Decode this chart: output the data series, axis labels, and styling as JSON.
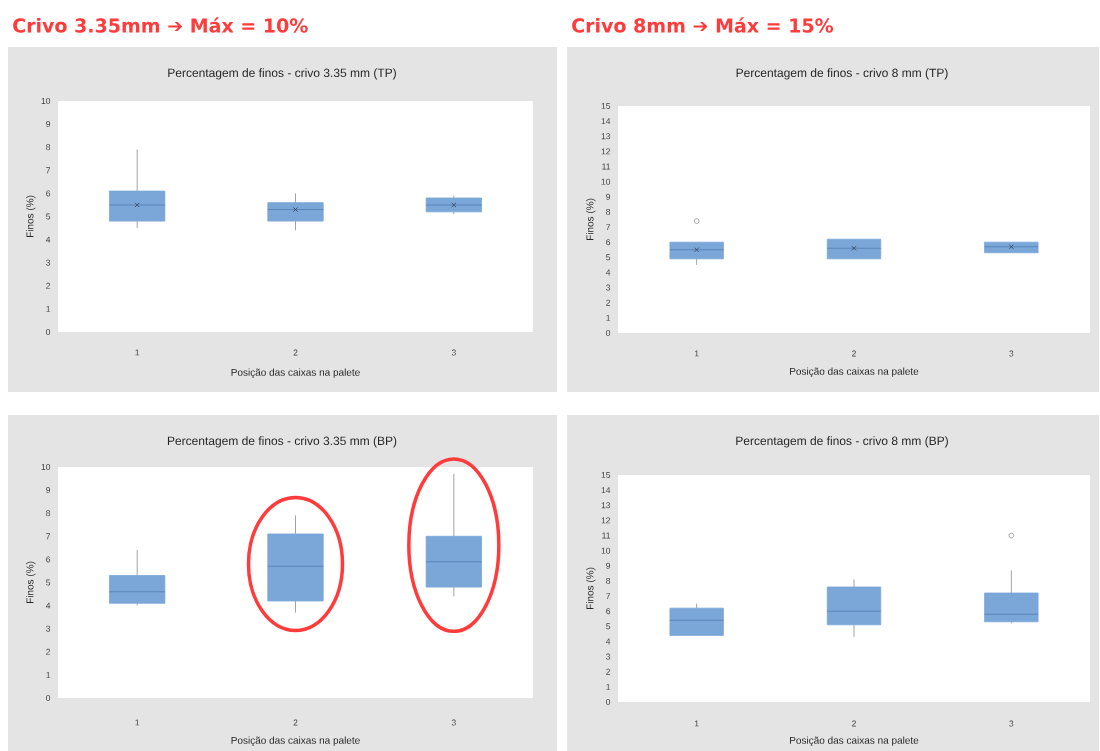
{
  "chart_data": [
    {
      "type": "box",
      "title": "Percentagem de finos - crivo 3.35 mm (TP)",
      "xlabel": "Posição das caixas na palete",
      "ylabel": "Finos (%)",
      "annotations": [
        "Crivo 3.35mm ➔ Máx = 10%"
      ],
      "categories": [
        "1",
        "2",
        "3"
      ],
      "color": "#7aa6d8",
      "ylim": [
        0,
        10
      ],
      "yticks": [
        0,
        1,
        2,
        3,
        4,
        5,
        6,
        7,
        8,
        9,
        10
      ],
      "boxes": [
        {
          "low": 4.5,
          "q1": 4.8,
          "median": 5.5,
          "q3": 6.1,
          "high": 7.9,
          "mean": 5.5
        },
        {
          "low": 4.4,
          "q1": 4.8,
          "median": 5.3,
          "q3": 5.6,
          "high": 6.0,
          "mean": 5.3
        },
        {
          "low": 5.1,
          "q1": 5.2,
          "median": 5.5,
          "q3": 5.8,
          "high": 5.9,
          "mean": 5.5
        }
      ]
    },
    {
      "type": "box",
      "title": "Percentagem de finos - crivo 8 mm (TP)",
      "xlabel": "Posição das caixas na palete",
      "ylabel": "Finos (%)",
      "annotations": [
        "Crivo 8mm ➔ Máx = 15%"
      ],
      "categories": [
        "1",
        "2",
        "3"
      ],
      "color": "#7aa6d8",
      "ylim": [
        0,
        15
      ],
      "yticks": [
        0,
        1,
        2,
        3,
        4,
        5,
        6,
        7,
        8,
        9,
        10,
        11,
        12,
        13,
        14,
        15
      ],
      "boxes": [
        {
          "low": 4.5,
          "q1": 4.9,
          "median": 5.5,
          "q3": 6.0,
          "high": 6.0,
          "mean": 5.5,
          "outliers": [
            7.4
          ]
        },
        {
          "low": 4.9,
          "q1": 4.9,
          "median": 5.6,
          "q3": 6.2,
          "high": 6.2,
          "mean": 5.6
        },
        {
          "low": 5.3,
          "q1": 5.3,
          "median": 5.7,
          "q3": 6.0,
          "high": 6.0,
          "mean": 5.7
        }
      ]
    },
    {
      "type": "box",
      "title": "Percentagem de finos - crivo 3.35 mm (BP)",
      "xlabel": "Posição das caixas na palete",
      "ylabel": "Finos (%)",
      "categories": [
        "1",
        "2",
        "3"
      ],
      "color": "#7aa6d8",
      "ylim": [
        0,
        10
      ],
      "yticks": [
        0,
        1,
        2,
        3,
        4,
        5,
        6,
        7,
        8,
        9,
        10
      ],
      "boxes": [
        {
          "low": 4.0,
          "q1": 4.1,
          "median": 4.6,
          "q3": 5.3,
          "high": 6.4
        },
        {
          "low": 3.7,
          "q1": 4.2,
          "median": 5.7,
          "q3": 7.1,
          "high": 7.9
        },
        {
          "low": 4.4,
          "q1": 4.8,
          "median": 5.9,
          "q3": 7.0,
          "high": 9.7
        }
      ]
    },
    {
      "type": "box",
      "title": "Percentagem de finos - crivo 8 mm (BP)",
      "xlabel": "Posição das caixas na palete",
      "ylabel": "Finos (%)",
      "categories": [
        "1",
        "2",
        "3"
      ],
      "color": "#7aa6d8",
      "ylim": [
        0,
        15
      ],
      "yticks": [
        0,
        1,
        2,
        3,
        4,
        5,
        6,
        7,
        8,
        9,
        10,
        11,
        12,
        13,
        14,
        15
      ],
      "boxes": [
        {
          "low": 4.4,
          "q1": 4.4,
          "median": 5.4,
          "q3": 6.2,
          "high": 6.5
        },
        {
          "low": 4.3,
          "q1": 5.1,
          "median": 6.0,
          "q3": 7.6,
          "high": 8.1
        },
        {
          "low": 5.2,
          "q1": 5.3,
          "median": 5.8,
          "q3": 7.2,
          "high": 8.7,
          "outliers": [
            11.0
          ]
        }
      ]
    }
  ]
}
